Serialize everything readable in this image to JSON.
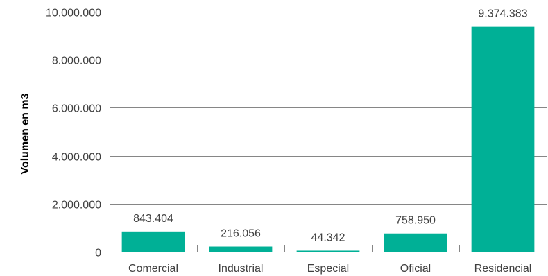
{
  "chart_data": {
    "type": "bar",
    "categories": [
      "Comercial",
      "Industrial",
      "Especial",
      "Oficial",
      "Residencial"
    ],
    "values": [
      843404,
      216056,
      44342,
      758950,
      9374383
    ],
    "data_labels": [
      "843.404",
      "216.056",
      "44.342",
      "758.950",
      "9.374.383"
    ],
    "ylabel": "Volumen en m3",
    "xlabel": "",
    "ylim": [
      0,
      10000000
    ],
    "yticks": [
      0,
      2000000,
      4000000,
      6000000,
      8000000,
      10000000
    ],
    "ytick_labels": [
      "0",
      "2.000.000",
      "4.000.000",
      "6.000.000",
      "8.000.000",
      "10.000.000"
    ],
    "grid": true,
    "bar_color": "#00b096"
  }
}
